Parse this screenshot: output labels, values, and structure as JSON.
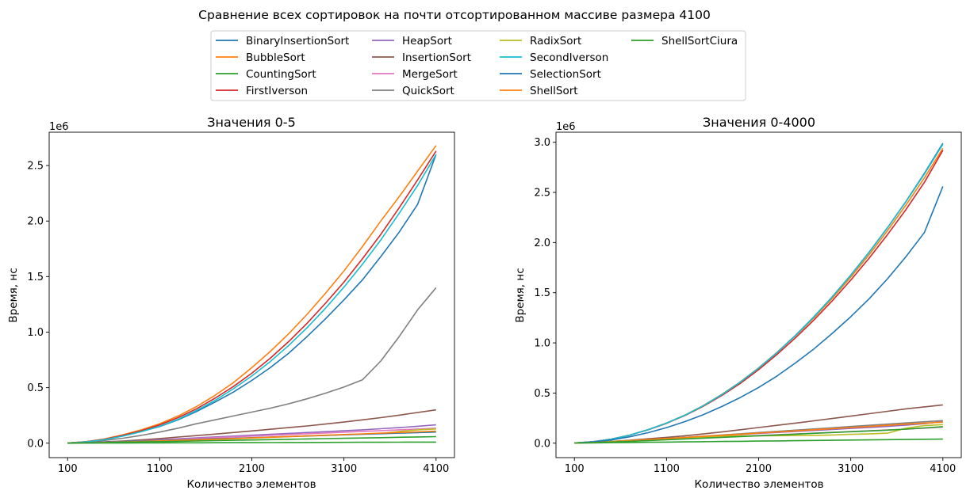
{
  "figure": {
    "title": "Сравнение всех сортировок на почти отсортированном массиве размера 4100"
  },
  "legend": {
    "placement": "top-center",
    "columns": 4
  },
  "chart_data": [
    {
      "type": "line",
      "title": "Значения 0-5",
      "xlabel": "Количество элементов",
      "ylabel": "Время, нс",
      "y_offset_label": "1e6",
      "xlim": [
        100,
        4100
      ],
      "ylim": [
        0,
        2800000
      ],
      "xticks": [
        100,
        1100,
        2100,
        3100,
        4100
      ],
      "yticks": [
        0,
        500000,
        1000000,
        1500000,
        2000000,
        2500000
      ],
      "ytick_labels": [
        "0.0",
        "0.5",
        "1.0",
        "1.5",
        "2.0",
        "2.5"
      ],
      "grid": false,
      "x": [
        100,
        300,
        500,
        700,
        900,
        1100,
        1300,
        1500,
        1700,
        1900,
        2100,
        2300,
        2500,
        2700,
        2900,
        3100,
        3300,
        3500,
        3700,
        3900,
        4100
      ],
      "series": [
        {
          "name": "BinaryInsertionSort",
          "color": "#1f77b4",
          "values": [
            2000,
            12000,
            33000,
            65000,
            105000,
            150000,
            210000,
            285000,
            370000,
            460000,
            565000,
            680000,
            810000,
            960000,
            1120000,
            1290000,
            1470000,
            1680000,
            1900000,
            2150000,
            2600000
          ]
        },
        {
          "name": "BubbleSort",
          "color": "#ff7f0e",
          "values": [
            2000,
            14000,
            38000,
            75000,
            120000,
            175000,
            245000,
            330000,
            430000,
            545000,
            680000,
            825000,
            985000,
            1160000,
            1350000,
            1550000,
            1770000,
            2000000,
            2220000,
            2450000,
            2680000
          ]
        },
        {
          "name": "CountingSort",
          "color": "#2ca02c",
          "values": [
            0,
            500,
            1000,
            1500,
            2000,
            2500,
            3000,
            3500,
            4000,
            4500,
            5000,
            5500,
            6000,
            6500,
            7000,
            7500,
            8000,
            8500,
            9000,
            9500,
            10000
          ]
        },
        {
          "name": "FirstIverson",
          "color": "#d62728",
          "values": [
            2000,
            13000,
            35000,
            70000,
            112000,
            165000,
            230000,
            310000,
            405000,
            510000,
            630000,
            765000,
            915000,
            1080000,
            1260000,
            1450000,
            1660000,
            1880000,
            2120000,
            2370000,
            2630000
          ]
        },
        {
          "name": "HeapSort",
          "color": "#9467bd",
          "values": [
            500,
            4000,
            9000,
            16000,
            24000,
            32000,
            40000,
            48000,
            56000,
            64000,
            72000,
            80000,
            88000,
            96000,
            104000,
            112000,
            120000,
            130000,
            140000,
            152000,
            165000
          ]
        },
        {
          "name": "InsertionSort",
          "color": "#8c564b",
          "values": [
            1000,
            6000,
            12000,
            20000,
            30000,
            42000,
            55000,
            68000,
            82000,
            96000,
            110000,
            125000,
            140000,
            155000,
            172000,
            190000,
            210000,
            230000,
            252000,
            276000,
            300000
          ]
        },
        {
          "name": "MergeSort",
          "color": "#e377c2",
          "values": [
            500,
            4000,
            9000,
            15000,
            22000,
            29000,
            36000,
            43000,
            50000,
            57000,
            64000,
            71000,
            78000,
            85000,
            92000,
            99000,
            106000,
            113000,
            120000,
            127000,
            135000
          ]
        },
        {
          "name": "QuickSort",
          "color": "#7f7f7f",
          "values": [
            1000,
            10000,
            25000,
            45000,
            70000,
            100000,
            135000,
            175000,
            210000,
            245000,
            280000,
            315000,
            355000,
            400000,
            450000,
            505000,
            570000,
            740000,
            960000,
            1200000,
            1400000
          ]
        },
        {
          "name": "RadixSort",
          "color": "#bcbd22",
          "values": [
            500,
            3000,
            6000,
            10000,
            14000,
            19000,
            24000,
            29000,
            34000,
            40000,
            46000,
            52000,
            58000,
            64000,
            70000,
            76000,
            82000,
            88000,
            105000,
            120000,
            128000
          ]
        },
        {
          "name": "SecondIverson",
          "color": "#17becf",
          "values": [
            2000,
            12000,
            32000,
            64000,
            104000,
            152000,
            215000,
            295000,
            385000,
            490000,
            605000,
            735000,
            880000,
            1040000,
            1215000,
            1405000,
            1610000,
            1830000,
            2070000,
            2320000,
            2600000
          ]
        },
        {
          "name": "SelectionSort",
          "color": "#1f77b4",
          "values": [
            1000,
            5000,
            10000,
            15000,
            20000,
            25000,
            30000,
            35000,
            40000,
            45000,
            50000,
            55000,
            60000,
            65000,
            70000,
            75000,
            80000,
            85000,
            90000,
            95000,
            100000
          ]
        },
        {
          "name": "ShellSort",
          "color": "#ff7f0e",
          "values": [
            500,
            3000,
            7000,
            11000,
            16000,
            21000,
            26000,
            31000,
            36000,
            42000,
            48000,
            54000,
            60000,
            66000,
            72000,
            78000,
            84000,
            90000,
            96000,
            102000,
            108000
          ]
        },
        {
          "name": "ShellSortCiura",
          "color": "#2ca02c",
          "values": [
            500,
            2500,
            5000,
            8000,
            11000,
            14000,
            17000,
            20000,
            23000,
            26000,
            29000,
            32000,
            35000,
            38000,
            41000,
            44000,
            47000,
            50000,
            53000,
            56000,
            59000
          ]
        }
      ]
    },
    {
      "type": "line",
      "title": "Значения 0-4000",
      "xlabel": "Количество элементов",
      "ylabel": "Время, нс",
      "y_offset_label": "1e6",
      "xlim": [
        100,
        4100
      ],
      "ylim": [
        0,
        3100000
      ],
      "xticks": [
        100,
        1100,
        2100,
        3100,
        4100
      ],
      "yticks": [
        0,
        500000,
        1000000,
        1500000,
        2000000,
        2500000,
        3000000
      ],
      "ytick_labels": [
        "0.0",
        "0.5",
        "1.0",
        "1.5",
        "2.0",
        "2.5",
        "3.0"
      ],
      "grid": false,
      "x": [
        100,
        300,
        500,
        700,
        900,
        1100,
        1300,
        1500,
        1700,
        1900,
        2100,
        2300,
        2500,
        2700,
        2900,
        3100,
        3300,
        3500,
        3700,
        3900,
        4100
      ],
      "series": [
        {
          "name": "BinaryInsertionSort",
          "color": "#1f77b4",
          "values": [
            2000,
            15000,
            40000,
            80000,
            135000,
            200000,
            280000,
            375000,
            485000,
            610000,
            750000,
            905000,
            1075000,
            1260000,
            1460000,
            1675000,
            1905000,
            2150000,
            2410000,
            2690000,
            2990000
          ]
        },
        {
          "name": "BubbleSort",
          "color": "#ff7f0e",
          "values": [
            2000,
            15000,
            40000,
            80000,
            135000,
            200000,
            280000,
            375000,
            485000,
            610000,
            750000,
            905000,
            1070000,
            1250000,
            1445000,
            1655000,
            1880000,
            2120000,
            2375000,
            2645000,
            2940000
          ]
        },
        {
          "name": "CountingSort",
          "color": "#2ca02c",
          "values": [
            1000,
            3000,
            5000,
            7000,
            9000,
            11000,
            13000,
            15000,
            17000,
            19000,
            21000,
            23000,
            25000,
            27000,
            29000,
            31000,
            33000,
            35000,
            37000,
            39000,
            41000
          ]
        },
        {
          "name": "FirstIverson",
          "color": "#d62728",
          "values": [
            2000,
            15000,
            40000,
            80000,
            133000,
            198000,
            276000,
            368000,
            475000,
            596000,
            733000,
            885000,
            1050000,
            1228000,
            1420000,
            1625000,
            1845000,
            2080000,
            2330000,
            2600000,
            2920000
          ]
        },
        {
          "name": "HeapSort",
          "color": "#9467bd",
          "values": [
            1000,
            8000,
            17000,
            27000,
            37000,
            47000,
            57000,
            67000,
            77000,
            87000,
            97000,
            107000,
            117000,
            127000,
            137000,
            147000,
            157000,
            167000,
            180000,
            195000,
            215000
          ]
        },
        {
          "name": "InsertionSort",
          "color": "#8c564b",
          "values": [
            1000,
            8000,
            18000,
            30000,
            44000,
            58000,
            74000,
            92000,
            112000,
            134000,
            156000,
            178000,
            200000,
            223000,
            246000,
            270000,
            294000,
            318000,
            342000,
            362000,
            382000
          ]
        },
        {
          "name": "MergeSort",
          "color": "#e377c2",
          "values": [
            1000,
            6000,
            13000,
            20000,
            28000,
            36000,
            44000,
            52000,
            60000,
            68000,
            76000,
            84000,
            92000,
            100000,
            108000,
            116000,
            124000,
            132000,
            140000,
            150000,
            160000
          ]
        },
        {
          "name": "QuickSort",
          "color": "#7f7f7f",
          "values": [
            1000,
            7000,
            15000,
            25000,
            36000,
            47000,
            58000,
            70000,
            82000,
            94000,
            106000,
            118000,
            130000,
            142000,
            154000,
            166000,
            178000,
            190000,
            202000,
            214000,
            225000
          ]
        },
        {
          "name": "RadixSort",
          "color": "#bcbd22",
          "values": [
            1000,
            8000,
            16000,
            25000,
            35000,
            45000,
            55000,
            62000,
            68000,
            72000,
            74000,
            75000,
            76000,
            78000,
            82000,
            88000,
            92000,
            100000,
            150000,
            175000,
            185000
          ]
        },
        {
          "name": "SecondIverson",
          "color": "#17becf",
          "values": [
            2000,
            15000,
            40000,
            80000,
            134000,
            200000,
            279000,
            373000,
            483000,
            608000,
            748000,
            903000,
            1073000,
            1258000,
            1458000,
            1673000,
            1903000,
            2148000,
            2408000,
            2683000,
            2980000
          ]
        },
        {
          "name": "SelectionSort",
          "color": "#1f77b4",
          "values": [
            2000,
            12000,
            32000,
            64000,
            105000,
            155000,
            215000,
            285000,
            365000,
            455000,
            555000,
            670000,
            800000,
            940000,
            1095000,
            1260000,
            1440000,
            1640000,
            1860000,
            2100000,
            2560000
          ]
        },
        {
          "name": "ShellSort",
          "color": "#ff7f0e",
          "values": [
            1000,
            6000,
            14000,
            24000,
            35000,
            46000,
            57000,
            68000,
            79000,
            90000,
            101000,
            112000,
            123000,
            134000,
            145000,
            156000,
            167000,
            178000,
            190000,
            200000,
            210000
          ]
        },
        {
          "name": "ShellSortCiura",
          "color": "#2ca02c",
          "values": [
            1000,
            5000,
            11000,
            18000,
            26000,
            34000,
            42000,
            50000,
            58000,
            66000,
            74000,
            82000,
            90000,
            98000,
            106000,
            114000,
            122000,
            130000,
            140000,
            152000,
            165000
          ]
        }
      ]
    }
  ]
}
